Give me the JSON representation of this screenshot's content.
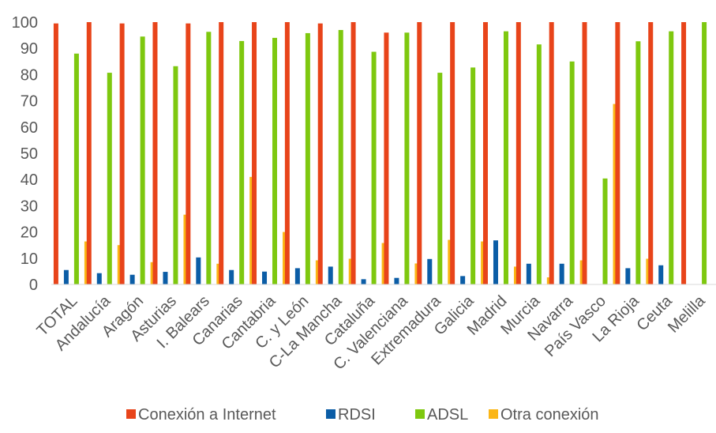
{
  "chart_data": {
    "type": "bar",
    "categories": [
      "TOTAL",
      "Andalucía",
      "Aragón",
      "Asturias",
      "I. Balears",
      "Canarias",
      "Cantabria",
      "C. y León",
      "C-La Mancha",
      "Cataluña",
      "C. Valenciana",
      "Extremadura",
      "Galicia",
      "Madrid",
      "Murcia",
      "Navarra",
      "País Vasco",
      "La Rioja",
      "Ceuta",
      "Melilla"
    ],
    "series": [
      {
        "name": "Conexión a Internet",
        "color": "#e8441a",
        "values": [
          99.5,
          100,
          99.5,
          100,
          99.5,
          100,
          100,
          100,
          99.5,
          100,
          96,
          100,
          100,
          100,
          100,
          100,
          100,
          100,
          100,
          100
        ]
      },
      {
        "name": "RDSI",
        "color": "#0b5da6",
        "values": [
          5.5,
          4.3,
          3.7,
          4.8,
          10.3,
          5.5,
          4.9,
          6.2,
          6.8,
          2,
          2.5,
          9.7,
          3.2,
          16.8,
          7.9,
          7.9,
          0,
          6.2,
          7.3,
          0
        ]
      },
      {
        "name": "ADSL",
        "color": "#7ec80f",
        "values": [
          88,
          80.7,
          94.5,
          83.2,
          96.3,
          92.8,
          94,
          95.8,
          97,
          88.7,
          96,
          80.7,
          82.7,
          96.5,
          91.5,
          85,
          40.4,
          92.7,
          96.5,
          100
        ]
      },
      {
        "name": "Otra conexión",
        "color": "#fbb616",
        "values": [
          16.4,
          15,
          8.5,
          26.6,
          7.9,
          41,
          20,
          9.2,
          9.8,
          15.8,
          8,
          17,
          16.4,
          6.8,
          2.7,
          9.2,
          68.8,
          9.8,
          0,
          0
        ]
      }
    ],
    "yticks": [
      0,
      10,
      20,
      30,
      40,
      50,
      60,
      70,
      80,
      90,
      100
    ],
    "ylim": [
      0,
      100
    ],
    "legend": "bottom",
    "grid": false
  }
}
